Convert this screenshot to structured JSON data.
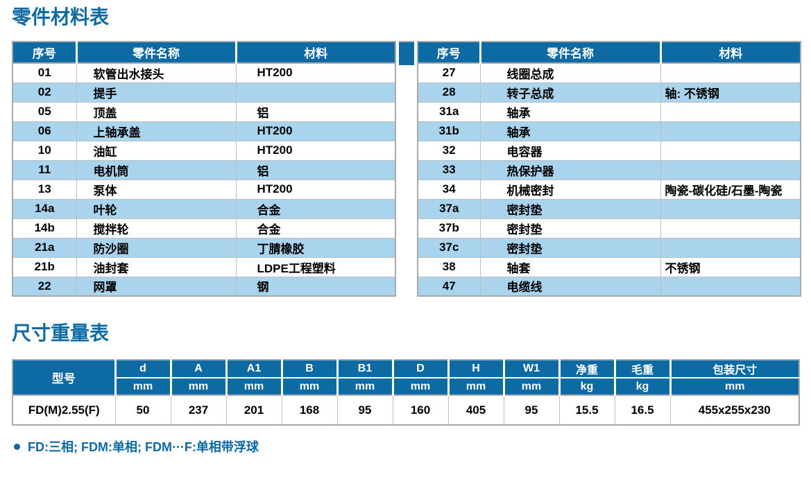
{
  "page": {
    "parts_title": "零件材料表",
    "dims_title": "尺寸重量表",
    "footnote": "FD:三相; FDM:单相; FDM···F:单相带浮球"
  },
  "colors": {
    "header_blue": "#0d6aa3",
    "title_blue": "#0d6aa3",
    "row_alt_blue": "#aad4ee",
    "border_gray": "#a9a9a9",
    "cell_border": "#bdbdbd"
  },
  "parts_table": {
    "headers": {
      "no": "序号",
      "name": "零件名称",
      "material": "材料"
    },
    "left_rows": [
      {
        "no": "01",
        "name": "软管出水接头",
        "material": "HT200"
      },
      {
        "no": "02",
        "name": "提手",
        "material": ""
      },
      {
        "no": "05",
        "name": "顶盖",
        "material": "铝"
      },
      {
        "no": "06",
        "name": "上轴承盖",
        "material": "HT200"
      },
      {
        "no": "10",
        "name": "油缸",
        "material": "HT200"
      },
      {
        "no": "11",
        "name": "电机筒",
        "material": "铝"
      },
      {
        "no": "13",
        "name": "泵体",
        "material": "HT200"
      },
      {
        "no": "14a",
        "name": "叶轮",
        "material": "合金"
      },
      {
        "no": "14b",
        "name": "搅拌轮",
        "material": "合金"
      },
      {
        "no": "21a",
        "name": "防沙圈",
        "material": "丁腈橡胶"
      },
      {
        "no": "21b",
        "name": "油封套",
        "material": "LDPE工程塑料"
      },
      {
        "no": "22",
        "name": "网罩",
        "material": "钢"
      }
    ],
    "right_rows": [
      {
        "no": "27",
        "name": "线圈总成",
        "material": ""
      },
      {
        "no": "28",
        "name": "转子总成",
        "material": "轴: 不锈钢"
      },
      {
        "no": "31a",
        "name": "轴承",
        "material": ""
      },
      {
        "no": "31b",
        "name": "轴承",
        "material": ""
      },
      {
        "no": "32",
        "name": "电容器",
        "material": ""
      },
      {
        "no": "33",
        "name": "热保护器",
        "material": ""
      },
      {
        "no": "34",
        "name": "机械密封",
        "material": "陶瓷-碳化硅/石墨-陶瓷"
      },
      {
        "no": "37a",
        "name": "密封垫",
        "material": ""
      },
      {
        "no": "37b",
        "name": "密封垫",
        "material": ""
      },
      {
        "no": "37c",
        "name": "密封垫",
        "material": ""
      },
      {
        "no": "38",
        "name": "轴套",
        "material": "不锈钢"
      },
      {
        "no": "47",
        "name": "电缆线",
        "material": ""
      }
    ]
  },
  "dims_table": {
    "model_header": "型号",
    "columns": [
      {
        "label": "d",
        "unit": "mm"
      },
      {
        "label": "A",
        "unit": "mm"
      },
      {
        "label": "A1",
        "unit": "mm"
      },
      {
        "label": "B",
        "unit": "mm"
      },
      {
        "label": "B1",
        "unit": "mm"
      },
      {
        "label": "D",
        "unit": "mm"
      },
      {
        "label": "H",
        "unit": "mm"
      },
      {
        "label": "W1",
        "unit": "mm"
      },
      {
        "label": "净重",
        "unit": "kg"
      },
      {
        "label": "毛重",
        "unit": "kg"
      },
      {
        "label": "包装尺寸",
        "unit": "mm"
      }
    ],
    "row": {
      "model": "FD(M)2.55(F)",
      "values": [
        "50",
        "237",
        "201",
        "168",
        "95",
        "160",
        "405",
        "95",
        "15.5",
        "16.5",
        "455x255x230"
      ]
    }
  }
}
